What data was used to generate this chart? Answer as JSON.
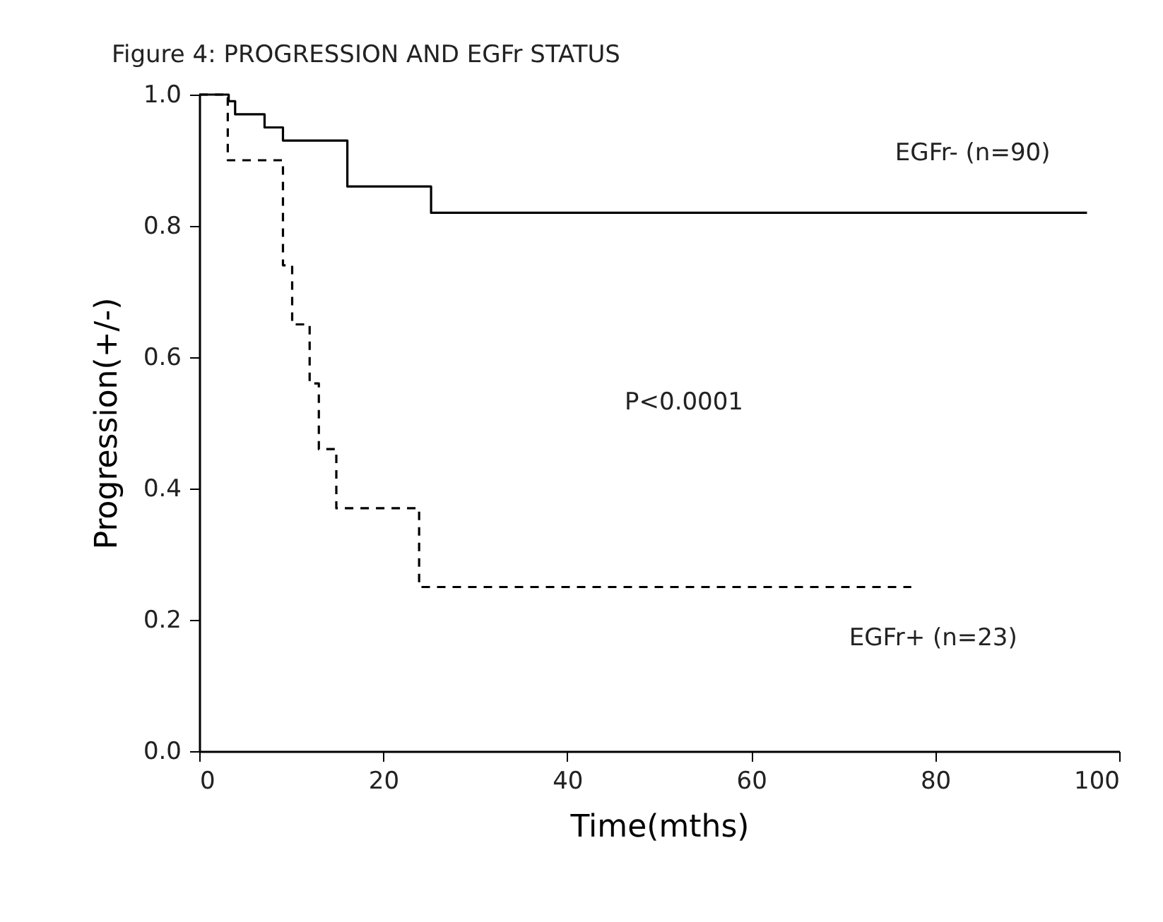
{
  "chart_data": {
    "type": "step",
    "title": "Figure    4: PROGRESSION AND EGFr STATUS",
    "xlabel": "Time(mths)",
    "ylabel": "Progression(+/-)",
    "series": [
      {
        "name": "EGFr- (n=90)",
        "color": "#000000",
        "line_style": "solid",
        "x": [
          0,
          3.2,
          3.9,
          7.1,
          9.1,
          16.1,
          25.2,
          96.5
        ],
        "values": [
          1.0,
          0.99,
          0.97,
          0.95,
          0.93,
          0.86,
          0.82,
          0.82
        ]
      },
      {
        "name": "EGFr+ (n=23)",
        "color": "#000000",
        "line_style": "dashed",
        "x": [
          0,
          3.1,
          9.1,
          10.1,
          12.0,
          13.0,
          14.9,
          23.9,
          77.4
        ],
        "values": [
          1.0,
          0.9,
          0.74,
          0.65,
          0.56,
          0.46,
          0.37,
          0.25,
          0.25
        ]
      }
    ],
    "annotations": [
      "P<0.0001"
    ],
    "xlim": [
      0,
      100
    ],
    "xticks": [
      0,
      20,
      40,
      60,
      80,
      100
    ],
    "ylim": [
      0,
      1
    ],
    "yticks": [
      {
        "value": 0,
        "label": "0.0"
      },
      {
        "value": 0.2,
        "label": "0.2"
      },
      {
        "value": 0.4,
        "label": "0.4"
      },
      {
        "value": 0.6,
        "label": "0.6"
      },
      {
        "value": 0.8,
        "label": "0.8"
      },
      {
        "value": 1,
        "label": "1.0"
      }
    ],
    "grid": false
  }
}
